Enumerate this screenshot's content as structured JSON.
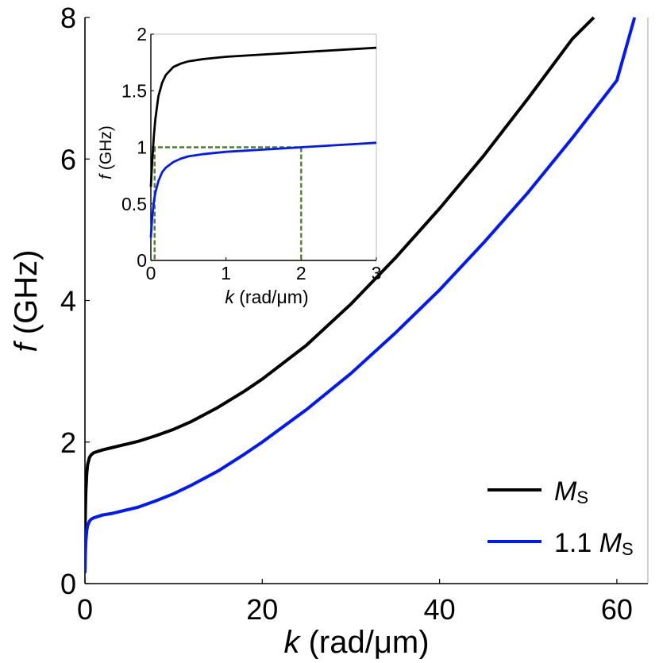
{
  "chart_data": [
    {
      "id": "main",
      "type": "line",
      "xlabel": {
        "var": "k",
        "unit": " (rad/μm)"
      },
      "ylabel": {
        "var": "f",
        "unit": " (GHz)"
      },
      "xlim": [
        0,
        63.5
      ],
      "ylim": [
        0,
        8
      ],
      "xticks": [
        0,
        20,
        40,
        60
      ],
      "yticks": [
        0,
        2,
        4,
        6,
        8
      ],
      "legend_position": "bottom-right",
      "series": [
        {
          "name": "M",
          "name_sub": "S",
          "color": "#000000",
          "x": [
            0,
            0.05,
            0.1,
            0.2,
            0.3,
            0.5,
            0.7,
            1,
            1.5,
            2,
            3,
            4,
            5,
            6,
            8,
            10,
            12,
            15,
            18,
            20,
            25,
            30,
            35,
            40,
            45,
            50,
            55,
            57.4
          ],
          "y": [
            0.65,
            1.05,
            1.3,
            1.55,
            1.68,
            1.78,
            1.82,
            1.85,
            1.87,
            1.89,
            1.92,
            1.95,
            1.98,
            2.01,
            2.09,
            2.18,
            2.29,
            2.49,
            2.72,
            2.89,
            3.37,
            3.95,
            4.6,
            5.3,
            6.05,
            6.86,
            7.7,
            8.0
          ]
        },
        {
          "name": "1.1 M",
          "name_sub": "S",
          "color": "#0018ff",
          "x": [
            0,
            0.05,
            0.1,
            0.2,
            0.3,
            0.5,
            0.7,
            1,
            1.5,
            2,
            3,
            4,
            5,
            6,
            8,
            10,
            12,
            15,
            18,
            20,
            25,
            30,
            35,
            40,
            45,
            50,
            55,
            60,
            62
          ],
          "y": [
            0.15,
            0.45,
            0.6,
            0.75,
            0.82,
            0.88,
            0.91,
            0.93,
            0.95,
            0.97,
            0.99,
            1.02,
            1.05,
            1.08,
            1.17,
            1.27,
            1.39,
            1.59,
            1.83,
            2.0,
            2.46,
            2.97,
            3.54,
            4.15,
            4.82,
            5.53,
            6.3,
            7.11,
            8.0
          ]
        }
      ]
    },
    {
      "id": "inset",
      "type": "line",
      "xlabel": {
        "var": "k",
        "unit": " (rad/μm)"
      },
      "ylabel": {
        "var": "f",
        "unit": " (GHz)"
      },
      "xlim": [
        0,
        3
      ],
      "ylim": [
        0,
        2
      ],
      "xticks": [
        0,
        1,
        2,
        3
      ],
      "yticks": [
        0,
        0.5,
        1,
        1.5,
        2
      ],
      "series": [
        {
          "color": "#000000",
          "x": [
            0,
            0.01,
            0.02,
            0.04,
            0.06,
            0.1,
            0.15,
            0.2,
            0.3,
            0.4,
            0.5,
            0.7,
            1,
            1.5,
            2,
            2.5,
            3
          ],
          "y": [
            0.65,
            0.78,
            0.9,
            1.1,
            1.25,
            1.45,
            1.57,
            1.64,
            1.71,
            1.74,
            1.76,
            1.78,
            1.8,
            1.82,
            1.84,
            1.86,
            1.88
          ]
        },
        {
          "color": "#0018ff",
          "x": [
            0,
            0.01,
            0.02,
            0.04,
            0.06,
            0.1,
            0.15,
            0.2,
            0.3,
            0.4,
            0.5,
            0.7,
            1,
            1.5,
            2,
            2.5,
            3
          ],
          "y": [
            0.2,
            0.3,
            0.4,
            0.52,
            0.6,
            0.7,
            0.78,
            0.82,
            0.87,
            0.9,
            0.92,
            0.94,
            0.96,
            0.98,
            1.0,
            1.02,
            1.04
          ]
        }
      ],
      "guide_lines": {
        "color": "#4f7d2e",
        "y_level": 1.0,
        "x_values": [
          0.05,
          2.0
        ]
      }
    }
  ]
}
